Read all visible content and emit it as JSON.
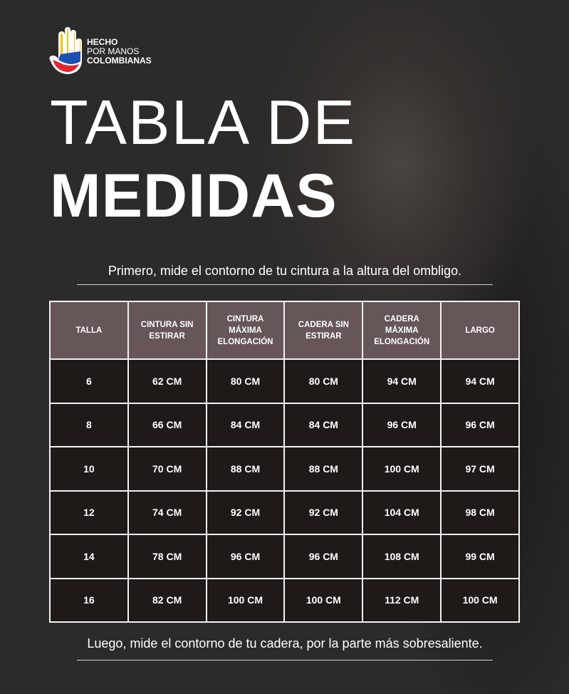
{
  "logo": {
    "line1": "HECHO",
    "line2": "POR MANOS",
    "line3": "COLOMBIANAS",
    "colors": [
      "#f5c400",
      "#1e4fb3",
      "#e0262e"
    ]
  },
  "title": {
    "line1": "TABLA DE",
    "line2": "MEDIDAS"
  },
  "note_top": "Primero, mide  el contorno de tu cintura a la altura del ombligo.",
  "note_bottom": "Luego, mide el contorno de tu cadera, por la parte más sobresaliente.",
  "table": {
    "headers": [
      "TALLA",
      "CINTURA SIN ESTIRAR",
      "CINTURA MÁXIMA ELONGACIÓN",
      "CADERA SIN ESTIRAR",
      "CADERA MÁXIMA ELONGACIÓN",
      "LARGO"
    ],
    "rows": [
      [
        "6",
        "62 CM",
        "80 CM",
        "80 CM",
        "94 CM",
        "94 CM"
      ],
      [
        "8",
        "66 CM",
        "84 CM",
        "84 CM",
        "96 CM",
        "96 CM"
      ],
      [
        "10",
        "70 CM",
        "88 CM",
        "88 CM",
        "100 CM",
        "97 CM"
      ],
      [
        "12",
        "74 CM",
        "92 CM",
        "92 CM",
        "104 CM",
        "98 CM"
      ],
      [
        "14",
        "78 CM",
        "96 CM",
        "96 CM",
        "108 CM",
        "99 CM"
      ],
      [
        "16",
        "82 CM",
        "100 CM",
        "100 CM",
        "112 CM",
        "100 CM"
      ]
    ]
  }
}
